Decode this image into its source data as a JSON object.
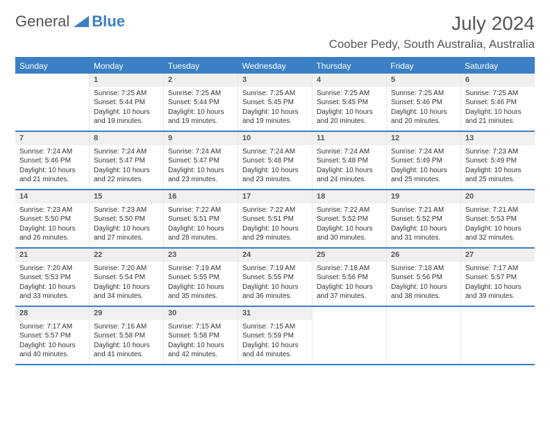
{
  "brand": {
    "part1": "General",
    "part2": "Blue"
  },
  "title": "July 2024",
  "location": "Coober Pedy, South Australia, Australia",
  "colors": {
    "accent": "#3b7fc4",
    "header_text": "#ffffff",
    "daynum_bg": "#f0f0f0",
    "text": "#333333",
    "muted": "#555555"
  },
  "weekdays": [
    "Sunday",
    "Monday",
    "Tuesday",
    "Wednesday",
    "Thursday",
    "Friday",
    "Saturday"
  ],
  "weeks": [
    [
      {
        "n": "",
        "sr": "",
        "ss": "",
        "dl": ""
      },
      {
        "n": "1",
        "sr": "Sunrise: 7:25 AM",
        "ss": "Sunset: 5:44 PM",
        "dl": "Daylight: 10 hours and 19 minutes."
      },
      {
        "n": "2",
        "sr": "Sunrise: 7:25 AM",
        "ss": "Sunset: 5:44 PM",
        "dl": "Daylight: 10 hours and 19 minutes."
      },
      {
        "n": "3",
        "sr": "Sunrise: 7:25 AM",
        "ss": "Sunset: 5:45 PM",
        "dl": "Daylight: 10 hours and 19 minutes."
      },
      {
        "n": "4",
        "sr": "Sunrise: 7:25 AM",
        "ss": "Sunset: 5:45 PM",
        "dl": "Daylight: 10 hours and 20 minutes."
      },
      {
        "n": "5",
        "sr": "Sunrise: 7:25 AM",
        "ss": "Sunset: 5:46 PM",
        "dl": "Daylight: 10 hours and 20 minutes."
      },
      {
        "n": "6",
        "sr": "Sunrise: 7:25 AM",
        "ss": "Sunset: 5:46 PM",
        "dl": "Daylight: 10 hours and 21 minutes."
      }
    ],
    [
      {
        "n": "7",
        "sr": "Sunrise: 7:24 AM",
        "ss": "Sunset: 5:46 PM",
        "dl": "Daylight: 10 hours and 21 minutes."
      },
      {
        "n": "8",
        "sr": "Sunrise: 7:24 AM",
        "ss": "Sunset: 5:47 PM",
        "dl": "Daylight: 10 hours and 22 minutes."
      },
      {
        "n": "9",
        "sr": "Sunrise: 7:24 AM",
        "ss": "Sunset: 5:47 PM",
        "dl": "Daylight: 10 hours and 23 minutes."
      },
      {
        "n": "10",
        "sr": "Sunrise: 7:24 AM",
        "ss": "Sunset: 5:48 PM",
        "dl": "Daylight: 10 hours and 23 minutes."
      },
      {
        "n": "11",
        "sr": "Sunrise: 7:24 AM",
        "ss": "Sunset: 5:48 PM",
        "dl": "Daylight: 10 hours and 24 minutes."
      },
      {
        "n": "12",
        "sr": "Sunrise: 7:24 AM",
        "ss": "Sunset: 5:49 PM",
        "dl": "Daylight: 10 hours and 25 minutes."
      },
      {
        "n": "13",
        "sr": "Sunrise: 7:23 AM",
        "ss": "Sunset: 5:49 PM",
        "dl": "Daylight: 10 hours and 25 minutes."
      }
    ],
    [
      {
        "n": "14",
        "sr": "Sunrise: 7:23 AM",
        "ss": "Sunset: 5:50 PM",
        "dl": "Daylight: 10 hours and 26 minutes."
      },
      {
        "n": "15",
        "sr": "Sunrise: 7:23 AM",
        "ss": "Sunset: 5:50 PM",
        "dl": "Daylight: 10 hours and 27 minutes."
      },
      {
        "n": "16",
        "sr": "Sunrise: 7:22 AM",
        "ss": "Sunset: 5:51 PM",
        "dl": "Daylight: 10 hours and 28 minutes."
      },
      {
        "n": "17",
        "sr": "Sunrise: 7:22 AM",
        "ss": "Sunset: 5:51 PM",
        "dl": "Daylight: 10 hours and 29 minutes."
      },
      {
        "n": "18",
        "sr": "Sunrise: 7:22 AM",
        "ss": "Sunset: 5:52 PM",
        "dl": "Daylight: 10 hours and 30 minutes."
      },
      {
        "n": "19",
        "sr": "Sunrise: 7:21 AM",
        "ss": "Sunset: 5:52 PM",
        "dl": "Daylight: 10 hours and 31 minutes."
      },
      {
        "n": "20",
        "sr": "Sunrise: 7:21 AM",
        "ss": "Sunset: 5:53 PM",
        "dl": "Daylight: 10 hours and 32 minutes."
      }
    ],
    [
      {
        "n": "21",
        "sr": "Sunrise: 7:20 AM",
        "ss": "Sunset: 5:53 PM",
        "dl": "Daylight: 10 hours and 33 minutes."
      },
      {
        "n": "22",
        "sr": "Sunrise: 7:20 AM",
        "ss": "Sunset: 5:54 PM",
        "dl": "Daylight: 10 hours and 34 minutes."
      },
      {
        "n": "23",
        "sr": "Sunrise: 7:19 AM",
        "ss": "Sunset: 5:55 PM",
        "dl": "Daylight: 10 hours and 35 minutes."
      },
      {
        "n": "24",
        "sr": "Sunrise: 7:19 AM",
        "ss": "Sunset: 5:55 PM",
        "dl": "Daylight: 10 hours and 36 minutes."
      },
      {
        "n": "25",
        "sr": "Sunrise: 7:18 AM",
        "ss": "Sunset: 5:56 PM",
        "dl": "Daylight: 10 hours and 37 minutes."
      },
      {
        "n": "26",
        "sr": "Sunrise: 7:18 AM",
        "ss": "Sunset: 5:56 PM",
        "dl": "Daylight: 10 hours and 38 minutes."
      },
      {
        "n": "27",
        "sr": "Sunrise: 7:17 AM",
        "ss": "Sunset: 5:57 PM",
        "dl": "Daylight: 10 hours and 39 minutes."
      }
    ],
    [
      {
        "n": "28",
        "sr": "Sunrise: 7:17 AM",
        "ss": "Sunset: 5:57 PM",
        "dl": "Daylight: 10 hours and 40 minutes."
      },
      {
        "n": "29",
        "sr": "Sunrise: 7:16 AM",
        "ss": "Sunset: 5:58 PM",
        "dl": "Daylight: 10 hours and 41 minutes."
      },
      {
        "n": "30",
        "sr": "Sunrise: 7:15 AM",
        "ss": "Sunset: 5:58 PM",
        "dl": "Daylight: 10 hours and 42 minutes."
      },
      {
        "n": "31",
        "sr": "Sunrise: 7:15 AM",
        "ss": "Sunset: 5:59 PM",
        "dl": "Daylight: 10 hours and 44 minutes."
      },
      {
        "n": "",
        "sr": "",
        "ss": "",
        "dl": ""
      },
      {
        "n": "",
        "sr": "",
        "ss": "",
        "dl": ""
      },
      {
        "n": "",
        "sr": "",
        "ss": "",
        "dl": ""
      }
    ]
  ]
}
